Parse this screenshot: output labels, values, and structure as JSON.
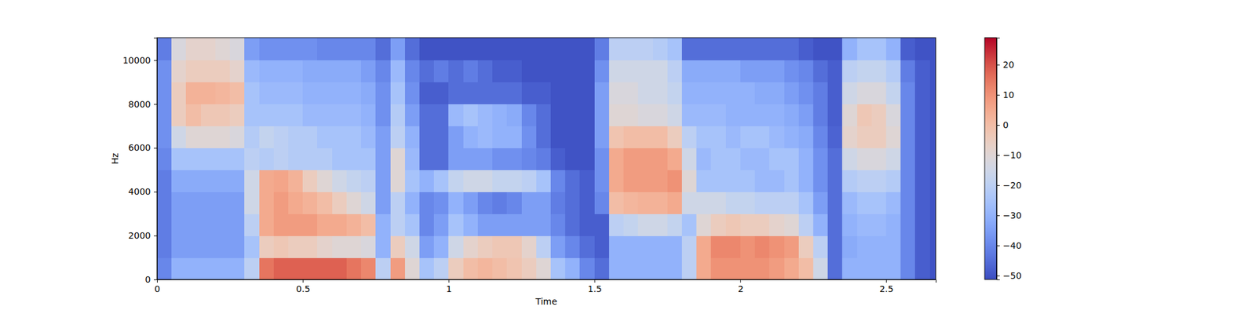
{
  "chart_data": {
    "type": "heatmap",
    "xlabel": "Time",
    "ylabel": "Hz",
    "xlim": [
      0,
      2.67
    ],
    "ylim": [
      0,
      11025
    ],
    "xticks": [
      0,
      0.5,
      1,
      1.5,
      2,
      2.5
    ],
    "yticks": [
      0,
      2000,
      4000,
      6000,
      8000,
      10000
    ],
    "x_edges": [
      0,
      0.05,
      0.1,
      0.15,
      0.2,
      0.25,
      0.3,
      0.35,
      0.4,
      0.45,
      0.5,
      0.55,
      0.6,
      0.65,
      0.7,
      0.75,
      0.8,
      0.85,
      0.9,
      0.95,
      1.0,
      1.05,
      1.1,
      1.15,
      1.2,
      1.25,
      1.3,
      1.35,
      1.4,
      1.45,
      1.5,
      1.55,
      1.6,
      1.65,
      1.7,
      1.75,
      1.8,
      1.85,
      1.9,
      1.95,
      2.0,
      2.05,
      2.1,
      2.15,
      2.2,
      2.25,
      2.3,
      2.35,
      2.4,
      2.45,
      2.5,
      2.55,
      2.6,
      2.65,
      2.67
    ],
    "y_edges": [
      0,
      1000,
      2000,
      3000,
      4000,
      5000,
      6000,
      7000,
      8000,
      9000,
      10000,
      11025
    ],
    "z": [
      [
        -40,
        -30,
        -30,
        -30,
        -30,
        -30,
        -20,
        15,
        18,
        18,
        18,
        18,
        18,
        15,
        12,
        -20,
        8,
        -10,
        -25,
        -20,
        -5,
        0,
        2,
        0,
        -2,
        -5,
        -10,
        -25,
        -30,
        -40,
        -45,
        -30,
        -30,
        -30,
        -30,
        -30,
        -20,
        5,
        10,
        10,
        10,
        10,
        8,
        5,
        0,
        -15,
        -45,
        -30,
        -30,
        -30,
        -30,
        -40,
        -48,
        -50
      ],
      [
        -42,
        -35,
        -35,
        -35,
        -35,
        -35,
        -25,
        -5,
        -3,
        -5,
        -5,
        -8,
        -10,
        -10,
        -12,
        -30,
        -5,
        -15,
        -35,
        -30,
        -15,
        -8,
        -5,
        -3,
        -3,
        -8,
        -20,
        -35,
        -40,
        -45,
        -48,
        -30,
        -30,
        -30,
        -30,
        -30,
        -20,
        5,
        12,
        12,
        10,
        12,
        10,
        8,
        -5,
        -20,
        -45,
        -32,
        -30,
        -30,
        -30,
        -40,
        -48,
        -50
      ],
      [
        -42,
        -35,
        -35,
        -35,
        -35,
        -35,
        -20,
        5,
        8,
        8,
        8,
        5,
        5,
        3,
        0,
        -30,
        -20,
        -25,
        -40,
        -35,
        -25,
        -30,
        -35,
        -35,
        -35,
        -35,
        -35,
        -40,
        -45,
        -48,
        -48,
        -20,
        -18,
        -15,
        -15,
        -18,
        -25,
        -10,
        -5,
        -3,
        -5,
        -5,
        -8,
        -10,
        -20,
        -30,
        -45,
        -30,
        -28,
        -28,
        -30,
        -40,
        -48,
        -50
      ],
      [
        -42,
        -35,
        -35,
        -35,
        -35,
        -35,
        -15,
        5,
        8,
        5,
        3,
        0,
        -5,
        -10,
        -15,
        -35,
        -20,
        -30,
        -40,
        -38,
        -30,
        -35,
        -40,
        -42,
        -40,
        -35,
        -35,
        -42,
        -45,
        -48,
        -40,
        0,
        2,
        3,
        3,
        5,
        -15,
        -15,
        -15,
        -18,
        -18,
        -20,
        -20,
        -20,
        -25,
        -35,
        -45,
        -28,
        -25,
        -25,
        -28,
        -40,
        -48,
        -50
      ],
      [
        -42,
        -32,
        -32,
        -32,
        -32,
        -32,
        -15,
        5,
        6,
        3,
        -5,
        -10,
        -15,
        -18,
        -20,
        -35,
        -10,
        -25,
        -30,
        -25,
        -18,
        -15,
        -15,
        -18,
        -18,
        -20,
        -25,
        -40,
        -45,
        -48,
        -38,
        5,
        8,
        8,
        8,
        10,
        -10,
        -25,
        -25,
        -25,
        -25,
        -28,
        -28,
        -25,
        -30,
        -38,
        -45,
        -22,
        -20,
        -20,
        -22,
        -40,
        -48,
        -50
      ],
      [
        -40,
        -25,
        -25,
        -25,
        -25,
        -25,
        -20,
        -22,
        -20,
        -22,
        -22,
        -22,
        -25,
        -25,
        -25,
        -35,
        -10,
        -28,
        -45,
        -45,
        -35,
        -35,
        -35,
        -38,
        -38,
        -40,
        -42,
        -48,
        -50,
        -50,
        -38,
        5,
        8,
        8,
        8,
        5,
        -15,
        -28,
        -25,
        -25,
        -28,
        -28,
        -25,
        -25,
        -30,
        -38,
        -45,
        -15,
        -12,
        -12,
        -15,
        -40,
        -48,
        -50
      ],
      [
        -38,
        -15,
        -10,
        -10,
        -10,
        -12,
        -22,
        -18,
        -20,
        -22,
        -22,
        -25,
        -25,
        -25,
        -28,
        -35,
        -20,
        -30,
        -45,
        -45,
        -35,
        -30,
        -28,
        -30,
        -30,
        -38,
        -45,
        -50,
        -50,
        -50,
        -35,
        -2,
        0,
        0,
        0,
        -5,
        -20,
        -25,
        -25,
        -28,
        -25,
        -25,
        -28,
        -30,
        -32,
        -40,
        -47,
        -8,
        -5,
        -5,
        -10,
        -40,
        -48,
        -50
      ],
      [
        -38,
        -5,
        0,
        -3,
        -3,
        -5,
        -25,
        -25,
        -25,
        -25,
        -28,
        -28,
        -28,
        -28,
        -30,
        -38,
        -22,
        -35,
        -45,
        -45,
        -28,
        -25,
        -28,
        -30,
        -32,
        -40,
        -45,
        -50,
        -50,
        -50,
        -35,
        -10,
        -10,
        -12,
        -12,
        -15,
        -28,
        -28,
        -28,
        -30,
        -30,
        -30,
        -30,
        -32,
        -35,
        -42,
        -48,
        -10,
        -3,
        -5,
        -12,
        -40,
        -48,
        -50
      ],
      [
        -38,
        -5,
        3,
        3,
        2,
        0,
        -25,
        -28,
        -28,
        -28,
        -30,
        -30,
        -30,
        -30,
        -32,
        -38,
        -25,
        -38,
        -48,
        -48,
        -45,
        -45,
        -45,
        -45,
        -45,
        -48,
        -48,
        -50,
        -50,
        -50,
        -35,
        -12,
        -12,
        -15,
        -15,
        -18,
        -30,
        -30,
        -30,
        -30,
        -30,
        -32,
        -32,
        -35,
        -38,
        -42,
        -48,
        -15,
        -12,
        -12,
        -18,
        -40,
        -48,
        -50
      ],
      [
        -38,
        -8,
        -5,
        -5,
        -5,
        -8,
        -28,
        -30,
        -30,
        -30,
        -32,
        -32,
        -32,
        -32,
        -35,
        -40,
        -28,
        -40,
        -45,
        -42,
        -45,
        -42,
        -45,
        -48,
        -48,
        -50,
        -50,
        -50,
        -50,
        -50,
        -38,
        -15,
        -15,
        -15,
        -15,
        -20,
        -32,
        -32,
        -32,
        -32,
        -35,
        -35,
        -35,
        -38,
        -40,
        -45,
        -48,
        -20,
        -18,
        -18,
        -22,
        -42,
        -48,
        -50
      ],
      [
        -42,
        -12,
        -8,
        -8,
        -10,
        -12,
        -35,
        -38,
        -38,
        -38,
        -38,
        -40,
        -40,
        -40,
        -40,
        -45,
        -35,
        -45,
        -50,
        -50,
        -50,
        -50,
        -50,
        -50,
        -50,
        -50,
        -50,
        -50,
        -50,
        -50,
        -42,
        -20,
        -20,
        -20,
        -22,
        -25,
        -45,
        -45,
        -45,
        -45,
        -45,
        -45,
        -45,
        -45,
        -48,
        -50,
        -50,
        -30,
        -25,
        -25,
        -30,
        -48,
        -50,
        -50
      ]
    ],
    "colorbar": {
      "range": [
        -51.3,
        29.0
      ],
      "ticks": [
        {
          "value": -50,
          "label": "−50"
        },
        {
          "value": -40,
          "label": "−40"
        },
        {
          "value": -30,
          "label": "−30"
        },
        {
          "value": -20,
          "label": "−20"
        },
        {
          "value": -10,
          "label": "−10"
        },
        0,
        10,
        20
      ]
    }
  }
}
